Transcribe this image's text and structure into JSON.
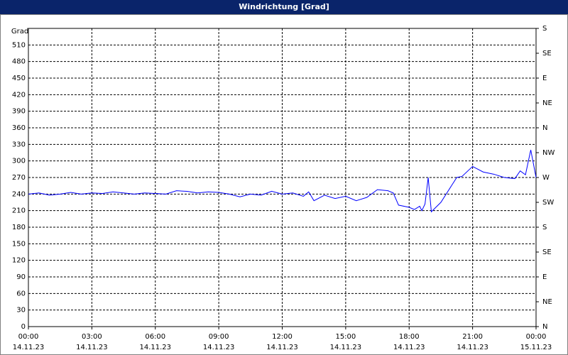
{
  "chart_data": {
    "type": "line",
    "title": "Windrichtung [Grad]",
    "y_label": "Grad",
    "x": [
      0,
      0.5,
      1,
      1.5,
      2,
      2.5,
      3,
      3.5,
      4,
      4.5,
      5,
      5.5,
      6,
      6.5,
      7,
      7.5,
      8,
      8.5,
      9,
      9.5,
      10,
      10.5,
      11,
      11.5,
      12,
      12.5,
      13,
      13.25,
      13.5,
      14,
      14.5,
      15,
      15.5,
      16,
      16.5,
      17,
      17.25,
      17.5,
      18,
      18.25,
      18.5,
      18.6,
      18.75,
      18.9,
      19.05,
      19.5,
      20,
      20.25,
      20.5,
      21,
      21.5,
      22,
      22.5,
      23,
      23.25,
      23.5,
      23.75,
      24
    ],
    "series": [
      {
        "name": "Windrichtung",
        "color": "#0000ff",
        "values": [
          240,
          242,
          238,
          240,
          243,
          240,
          242,
          241,
          244,
          242,
          240,
          242,
          241,
          240,
          246,
          245,
          242,
          244,
          243,
          240,
          235,
          240,
          238,
          245,
          240,
          242,
          236,
          244,
          228,
          238,
          232,
          236,
          228,
          234,
          248,
          246,
          242,
          220,
          216,
          212,
          218,
          210,
          222,
          270,
          208,
          225,
          255,
          270,
          272,
          290,
          280,
          276,
          270,
          268,
          282,
          275,
          320,
          270
        ]
      }
    ],
    "xlim": [
      0,
      24
    ],
    "xticks": [
      {
        "value": 0,
        "label": "00:00"
      },
      {
        "value": 3,
        "label": "03:00"
      },
      {
        "value": 6,
        "label": "06:00"
      },
      {
        "value": 9,
        "label": "09:00"
      },
      {
        "value": 12,
        "label": "12:00"
      },
      {
        "value": 15,
        "label": "15:00"
      },
      {
        "value": 18,
        "label": "18:00"
      },
      {
        "value": 21,
        "label": "21:00"
      },
      {
        "value": 24,
        "label": "00:00"
      }
    ],
    "xtick_dates": [
      "14.11.23",
      "14.11.23",
      "14.11.23",
      "14.11.23",
      "14.11.23",
      "14.11.23",
      "14.11.23",
      "14.11.23",
      "15.11.23"
    ],
    "ylim": [
      0,
      540
    ],
    "yticks": [
      0,
      30,
      60,
      90,
      120,
      150,
      180,
      210,
      240,
      270,
      300,
      330,
      360,
      390,
      420,
      450,
      480,
      510
    ],
    "y2lim": [
      0,
      540
    ],
    "y2ticks": [
      {
        "value": 0,
        "label": "N"
      },
      {
        "value": 45,
        "label": "NE"
      },
      {
        "value": 90,
        "label": "E"
      },
      {
        "value": 135,
        "label": "SE"
      },
      {
        "value": 180,
        "label": "S"
      },
      {
        "value": 225,
        "label": "SW"
      },
      {
        "value": 270,
        "label": "W"
      },
      {
        "value": 315,
        "label": "NW"
      },
      {
        "value": 360,
        "label": "N"
      },
      {
        "value": 405,
        "label": "NE"
      },
      {
        "value": 450,
        "label": "E"
      },
      {
        "value": 495,
        "label": "SE"
      },
      {
        "value": 540,
        "label": "S"
      }
    ],
    "grid": true
  }
}
